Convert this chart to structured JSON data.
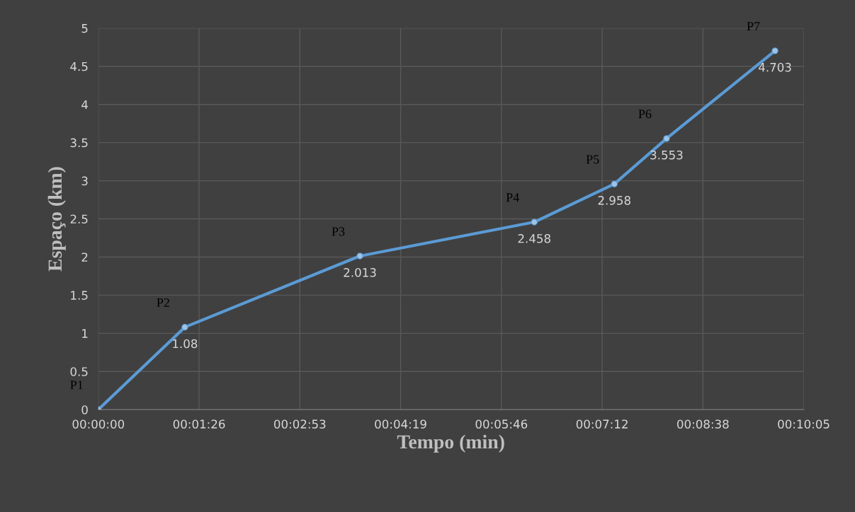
{
  "chart_data": {
    "type": "line",
    "xlabel": "Tempo (min)",
    "ylabel": "Espaço (km)",
    "x": [
      0,
      1.236,
      3.738,
      6.23,
      7.374,
      8.12,
      9.67
    ],
    "series": [
      {
        "color": "#5b9bd5",
        "values": [
          0,
          1.08,
          2.013,
          2.458,
          2.958,
          3.553,
          4.703
        ],
        "value_labels": [
          null,
          "1.08",
          "2.013",
          "2.458",
          "2.958",
          "3.553",
          "4.703"
        ]
      }
    ],
    "xlim": [
      0,
      10.08
    ],
    "xticks": [
      {
        "value": 0,
        "label": "00:00:00"
      },
      {
        "value": 1.44,
        "label": "00:01:26"
      },
      {
        "value": 2.88,
        "label": "00:02:53"
      },
      {
        "value": 4.32,
        "label": "00:04:19"
      },
      {
        "value": 5.76,
        "label": "00:05:46"
      },
      {
        "value": 7.2,
        "label": "00:07:12"
      },
      {
        "value": 8.64,
        "label": "00:08:38"
      },
      {
        "value": 10.08,
        "label": "00:10:05"
      }
    ],
    "ylim": [
      0,
      5
    ],
    "yticks": [
      0,
      0.5,
      1,
      1.5,
      2,
      2.5,
      3,
      3.5,
      4,
      4.5,
      5
    ],
    "annotations": [
      {
        "text": "P1",
        "x": 0,
        "y": 0
      },
      {
        "text": "P2",
        "x": 1.236,
        "y": 1.08
      },
      {
        "text": "P3",
        "x": 3.738,
        "y": 2.013
      },
      {
        "text": "P4",
        "x": 6.23,
        "y": 2.458
      },
      {
        "text": "P5",
        "x": 7.374,
        "y": 2.958
      },
      {
        "text": "P6",
        "x": 8.12,
        "y": 3.553
      },
      {
        "text": "P7",
        "x": 9.67,
        "y": 4.703
      }
    ],
    "grid": true,
    "marker": "circle",
    "line_style": "solid"
  }
}
